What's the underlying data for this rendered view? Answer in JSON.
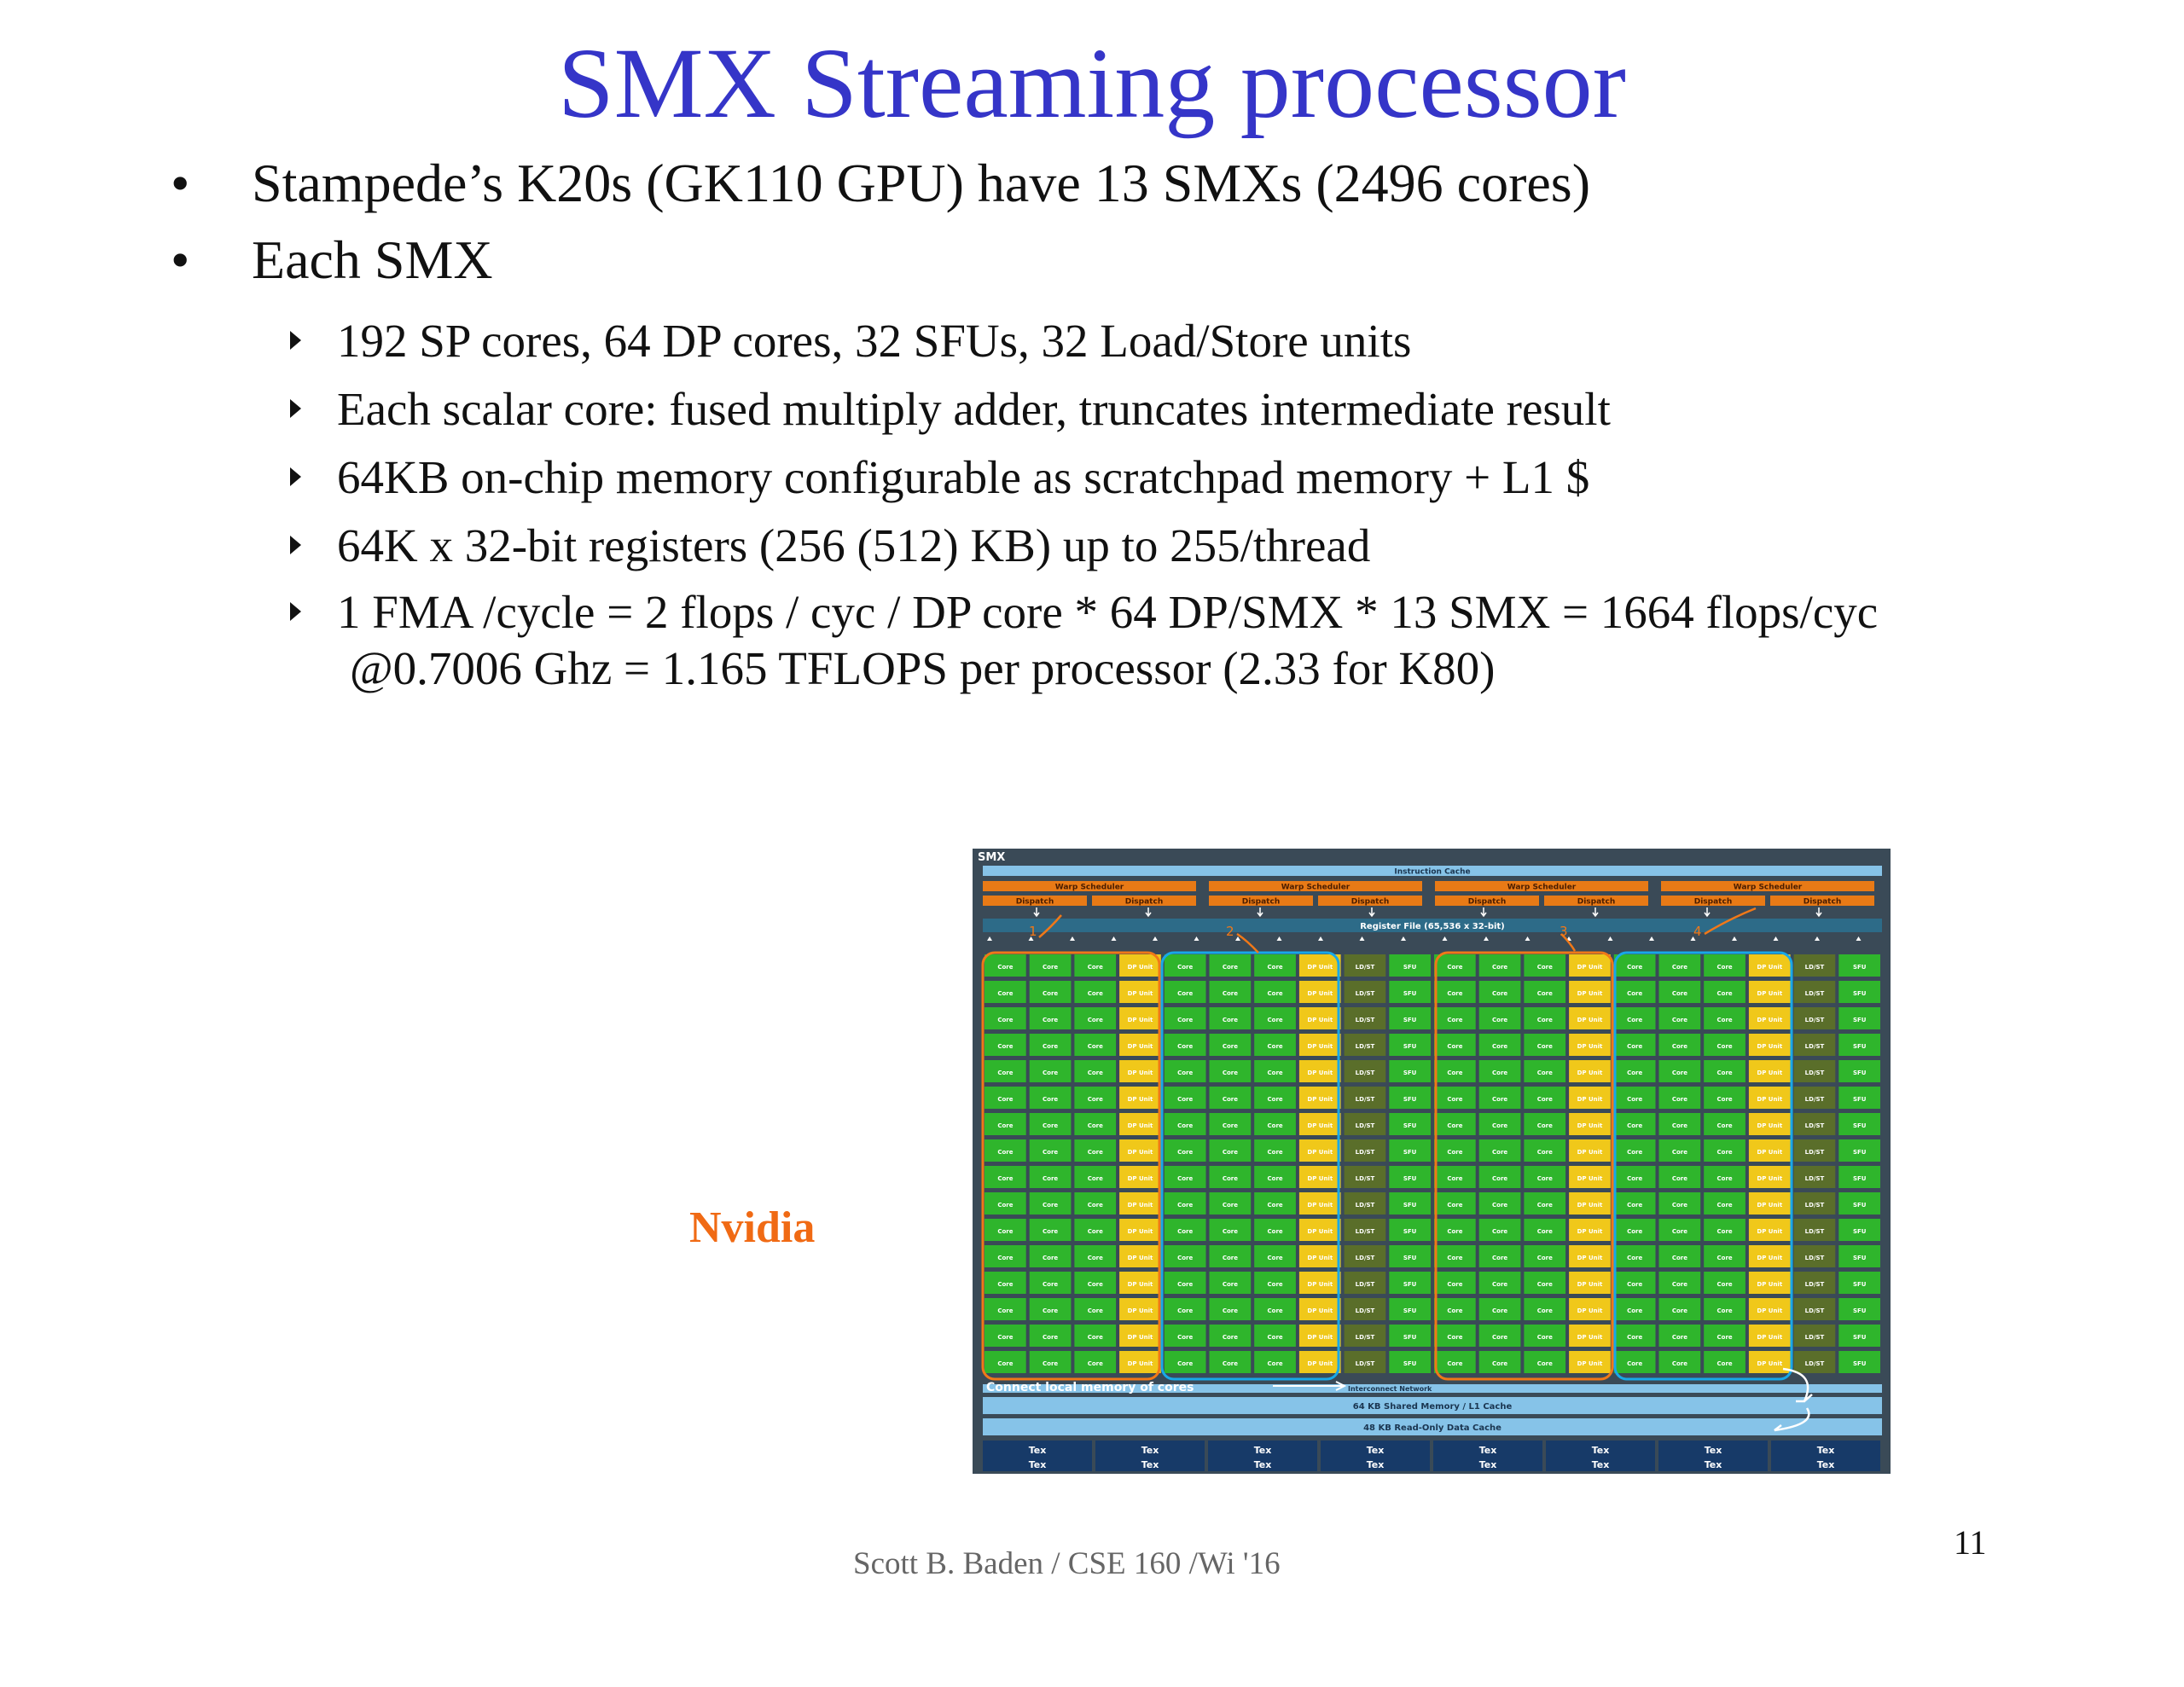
{
  "slide": {
    "title": "SMX Streaming processor",
    "bullets": [
      "Stampede’s K20s (GK110 GPU) have 13 SMXs (2496 cores)",
      "Each SMX"
    ],
    "sub_bullets": [
      "192 SP cores, 64 DP cores, 32 SFUs, 32 Load/Store  units",
      "Each scalar core: fused multiply adder, truncates intermediate  result",
      "64KB on-chip memory configurable as scratchpad   memory + L1 $",
      "64K  x 32-bit registers (256 (512) KB)  up to 255/thread",
      "1 FMA /cycle = 2 flops / cyc / DP core  * 64 DP/SMX * 13 SMX = 1664   flops/cyc"
    ],
    "continuation": "@0.7006 Ghz =  1.165 TFLOPS per processor (2.33 for K80)",
    "image_caption": "Nvidia",
    "footer": "Scott B. Baden / CSE 160 /Wi '16",
    "page_number": "11"
  },
  "diagram": {
    "smx_label": "SMX",
    "instruction_cache": "Instruction Cache",
    "warp_scheduler": "Warp Scheduler",
    "dispatch": "Dispatch",
    "register_file": "Register File (65,536 x 32-bit)",
    "core": "Core",
    "dp_unit": "DP Unit",
    "ldst": "LD/ST",
    "sfu": "SFU",
    "interconnect": "Interconnect Network",
    "shared_memory": "64 KB Shared Memory / L1 Cache",
    "readonly_cache": "48 KB Read-Only Data Cache",
    "tex": "Tex",
    "annotation": "Connect local memory of cores",
    "markers": [
      "1",
      "2",
      "3",
      "4"
    ],
    "colors": {
      "background": "#3a4a57",
      "blue_bar": "#86c3e8",
      "scheduler": "#e87a16",
      "core": "#2fb52c",
      "dp_unit": "#f0c81a",
      "ldst": "#5a6e2a",
      "sfu": "#2fb52c",
      "tex": "#173a68",
      "orange_outline": "#f07818",
      "cyan_outline": "#18a8e8"
    }
  }
}
